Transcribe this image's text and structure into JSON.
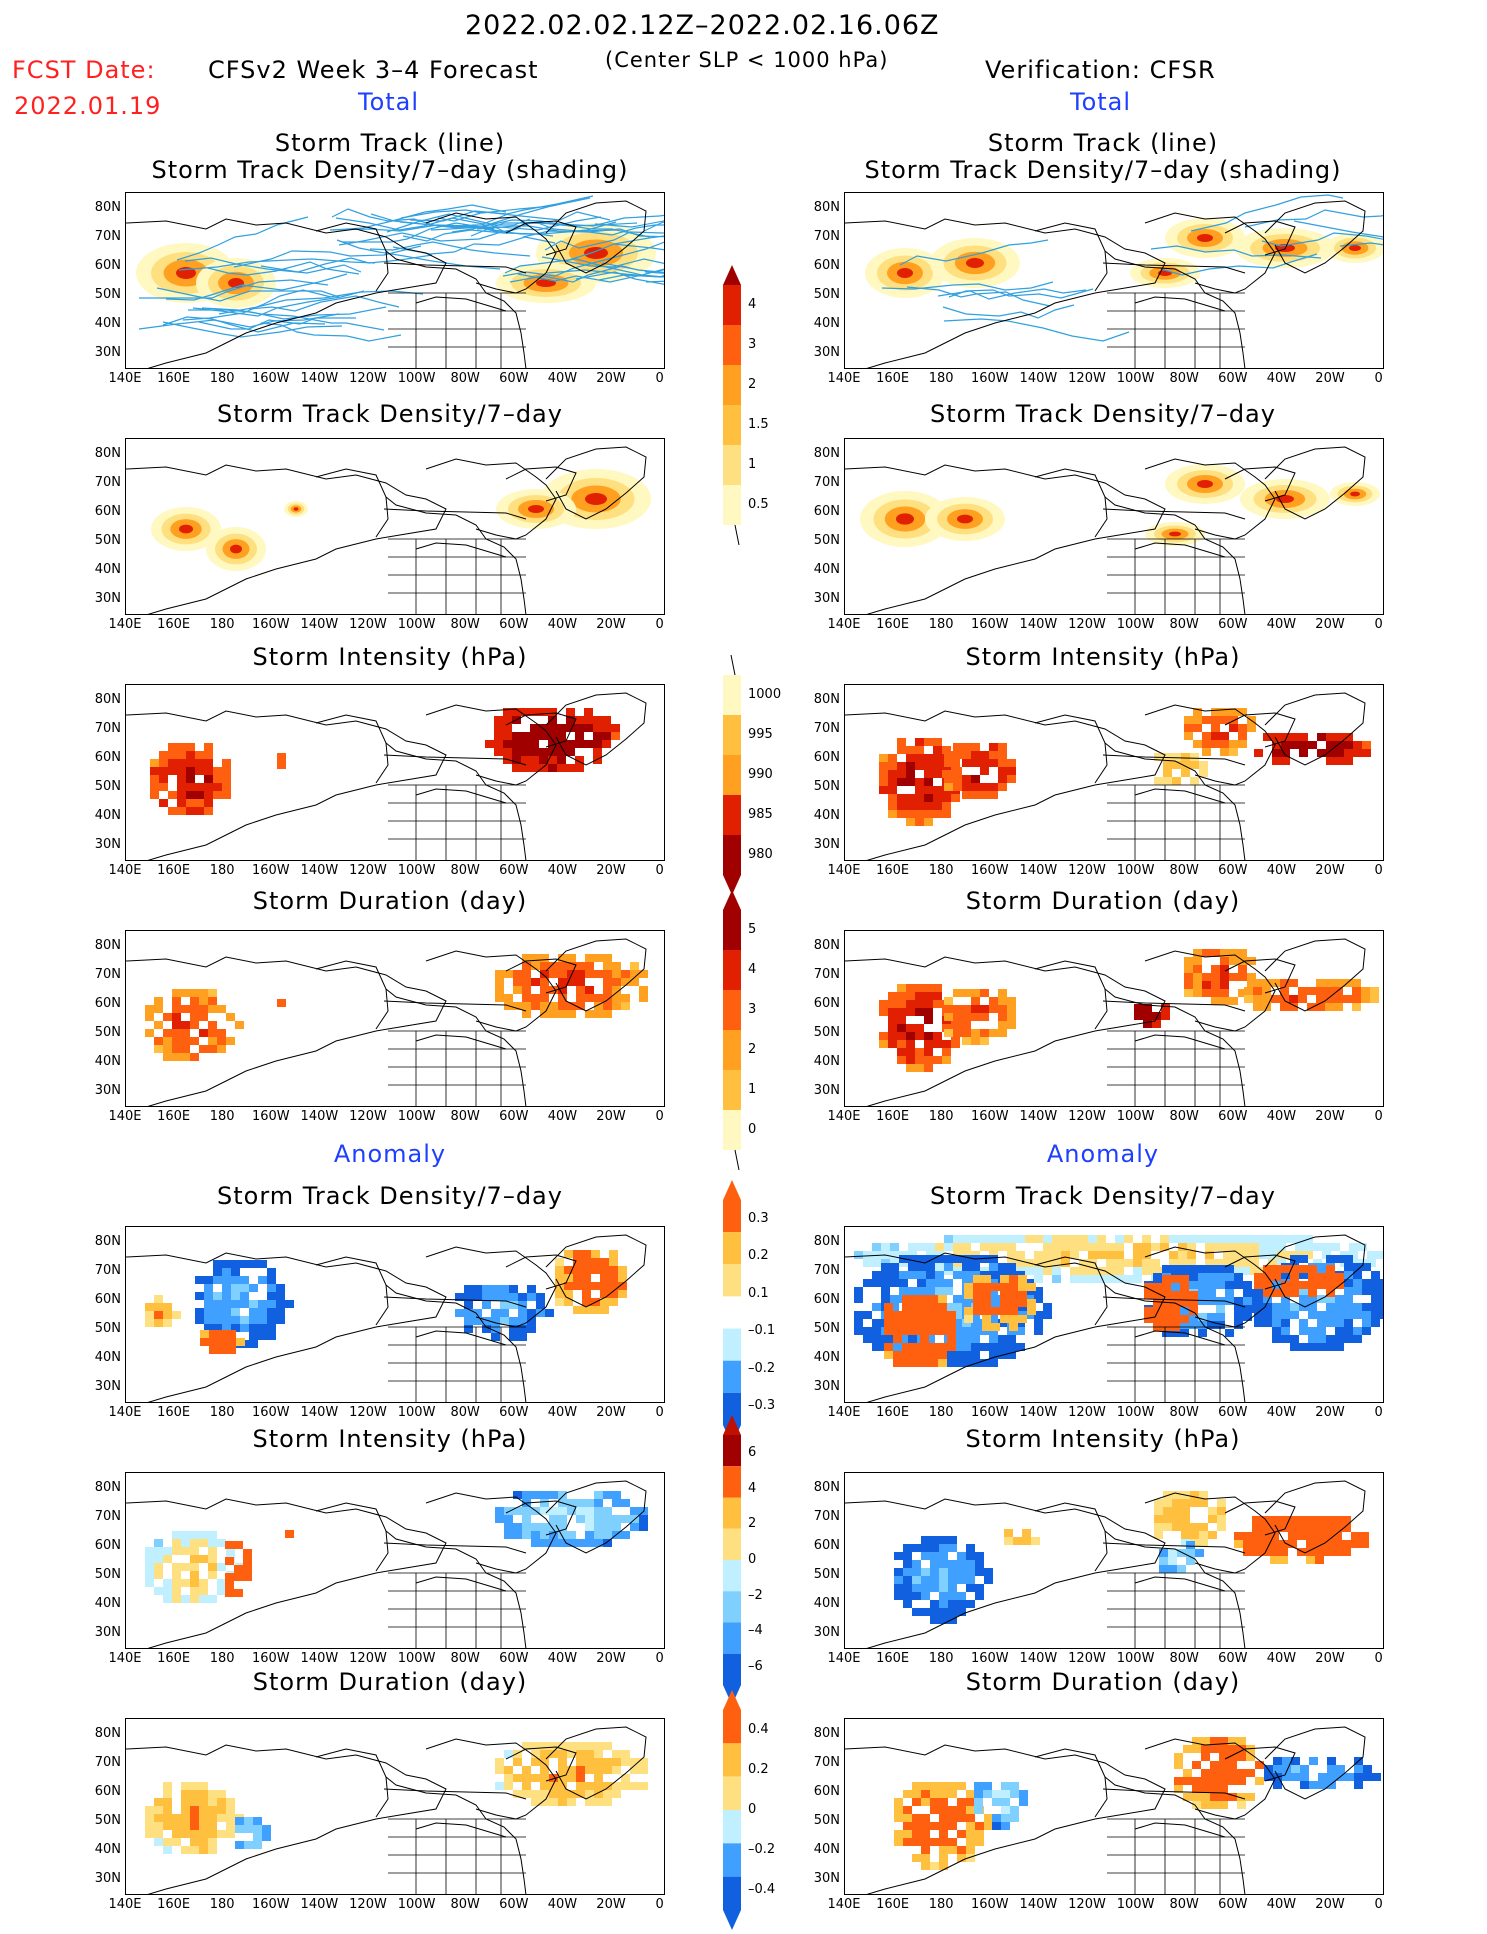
{
  "header": {
    "date_range": "2022.02.02.12Z–2022.02.16.06Z",
    "fcst_date_label": "FCST Date:",
    "fcst_date_value": "2022.01.19",
    "forecast_title": "CFSv2 Week 3–4 Forecast",
    "criterion": "(Center SLP < 1000 hPa)",
    "verification": "Verification: CFSR",
    "left_total": "Total",
    "right_total": "Total",
    "left_anomaly": "Anomaly",
    "right_anomaly": "Anomaly"
  },
  "panel_titles": {
    "track_line": "Storm Track (line)",
    "track_shading": "Storm Track Density/7–day (shading)",
    "density": "Storm Track Density/7–day",
    "intensity": "Storm Intensity (hPa)",
    "duration": "Storm Duration (day)"
  },
  "axes": {
    "lat_ticks": [
      "80N",
      "70N",
      "60N",
      "50N",
      "40N",
      "30N"
    ],
    "lon_ticks": [
      "140E",
      "160E",
      "180",
      "160W",
      "140W",
      "120W",
      "100W",
      "80W",
      "60W",
      "40W",
      "20W",
      "0"
    ]
  },
  "colorbars": {
    "density_total": [
      "4",
      "3",
      "2",
      "1.5",
      "1",
      "0.5"
    ],
    "intensity_total": [
      "1000",
      "995",
      "990",
      "985",
      "980"
    ],
    "duration_total": [
      "5",
      "4",
      "3",
      "2",
      "1",
      "0"
    ],
    "density_anom": [
      "0.3",
      "0.2",
      "0.1",
      "–0.1",
      "–0.2",
      "–0.3"
    ],
    "intensity_anom": [
      "6",
      "4",
      "2",
      "0",
      "–2",
      "–4",
      "–6"
    ],
    "duration_anom": [
      "0.4",
      "0.2",
      "0",
      "–0.2",
      "–0.4"
    ]
  },
  "colors": {
    "warm_scale": [
      "#fff8c0",
      "#ffe080",
      "#ffc040",
      "#ffa020",
      "#ff6010",
      "#e02000",
      "#a00000"
    ],
    "cool_scale": [
      "#c0f0ff",
      "#80d0ff",
      "#40a0ff",
      "#1060e0"
    ],
    "track_line": "#30a0e0"
  }
}
